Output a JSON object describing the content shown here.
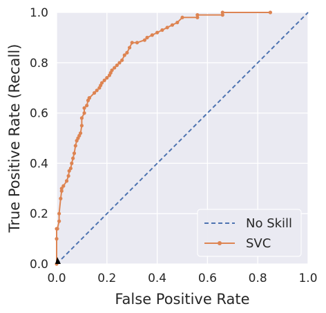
{
  "chart_data": {
    "type": "line",
    "xlabel": "False Positive Rate",
    "ylabel": "True Positive Rate (Recall)",
    "xlim": [
      0,
      1
    ],
    "ylim": [
      0,
      1
    ],
    "xticks": [
      "0.0",
      "0.2",
      "0.4",
      "0.6",
      "0.8",
      "1.0"
    ],
    "yticks": [
      "0.0",
      "0.2",
      "0.4",
      "0.6",
      "0.8",
      "1.0"
    ],
    "grid": true,
    "legend_position": "lower-right",
    "colors": {
      "background": "#eaeaf2",
      "grid": "#ffffff",
      "no_skill": "#4c72b0",
      "svc": "#dd8452",
      "text": "#262626"
    },
    "series": [
      {
        "name": "No Skill",
        "style": "dashed",
        "color": "#4c72b0",
        "x": [
          0,
          1
        ],
        "y": [
          0,
          1
        ]
      },
      {
        "name": "SVC",
        "style": "solid-markers",
        "color": "#dd8452",
        "x": [
          0,
          0,
          0,
          0.003,
          0.01,
          0.01,
          0.016,
          0.02,
          0.02,
          0.027,
          0.04,
          0.047,
          0.05,
          0.056,
          0.06,
          0.065,
          0.07,
          0.075,
          0.08,
          0.085,
          0.09,
          0.095,
          0.1,
          0.1,
          0.11,
          0.11,
          0.12,
          0.125,
          0.13,
          0.13,
          0.15,
          0.16,
          0.17,
          0.175,
          0.18,
          0.19,
          0.2,
          0.21,
          0.215,
          0.22,
          0.23,
          0.24,
          0.25,
          0.26,
          0.27,
          0.28,
          0.29,
          0.3,
          0.32,
          0.35,
          0.36,
          0.38,
          0.4,
          0.42,
          0.44,
          0.46,
          0.48,
          0.5,
          0.56,
          0.56,
          0.66,
          0.66,
          0.85
        ],
        "y": [
          0,
          0.1,
          0.14,
          0.14,
          0.17,
          0.2,
          0.26,
          0.29,
          0.3,
          0.31,
          0.33,
          0.35,
          0.37,
          0.38,
          0.4,
          0.42,
          0.44,
          0.47,
          0.49,
          0.5,
          0.51,
          0.52,
          0.55,
          0.58,
          0.6,
          0.62,
          0.63,
          0.65,
          0.66,
          0.66,
          0.68,
          0.69,
          0.7,
          0.71,
          0.72,
          0.73,
          0.74,
          0.75,
          0.76,
          0.77,
          0.78,
          0.79,
          0.8,
          0.81,
          0.83,
          0.84,
          0.86,
          0.88,
          0.88,
          0.89,
          0.9,
          0.91,
          0.92,
          0.93,
          0.94,
          0.95,
          0.96,
          0.98,
          0.98,
          0.99,
          0.99,
          1.0,
          1.0
        ]
      }
    ]
  }
}
